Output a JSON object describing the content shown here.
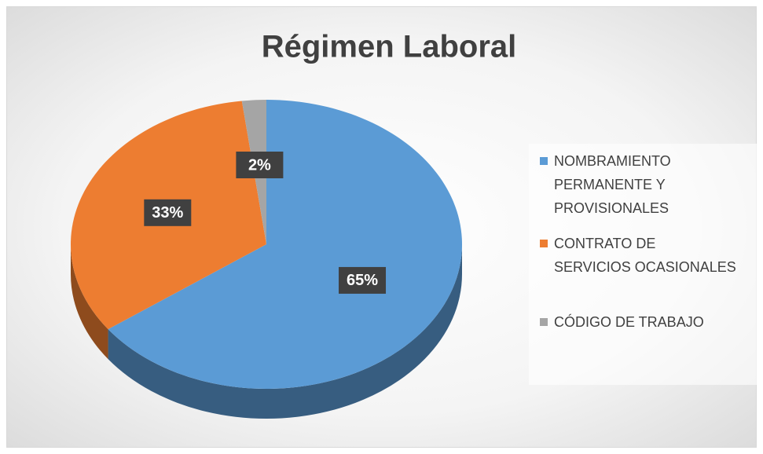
{
  "chart_data": {
    "type": "pie",
    "title": "Régimen Laboral",
    "categories": [
      "NOMBRAMIENTO PERMANENTE Y PROVISIONALES",
      "CONTRATO DE SERVICIOS OCASIONALES",
      "CÓDIGO DE TRABAJO"
    ],
    "values": [
      65,
      33,
      2
    ],
    "value_labels": [
      "65%",
      "33%",
      "2%"
    ],
    "colors": [
      "#5b9bd5",
      "#ed7d31",
      "#a5a5a5"
    ],
    "legend": "right"
  }
}
